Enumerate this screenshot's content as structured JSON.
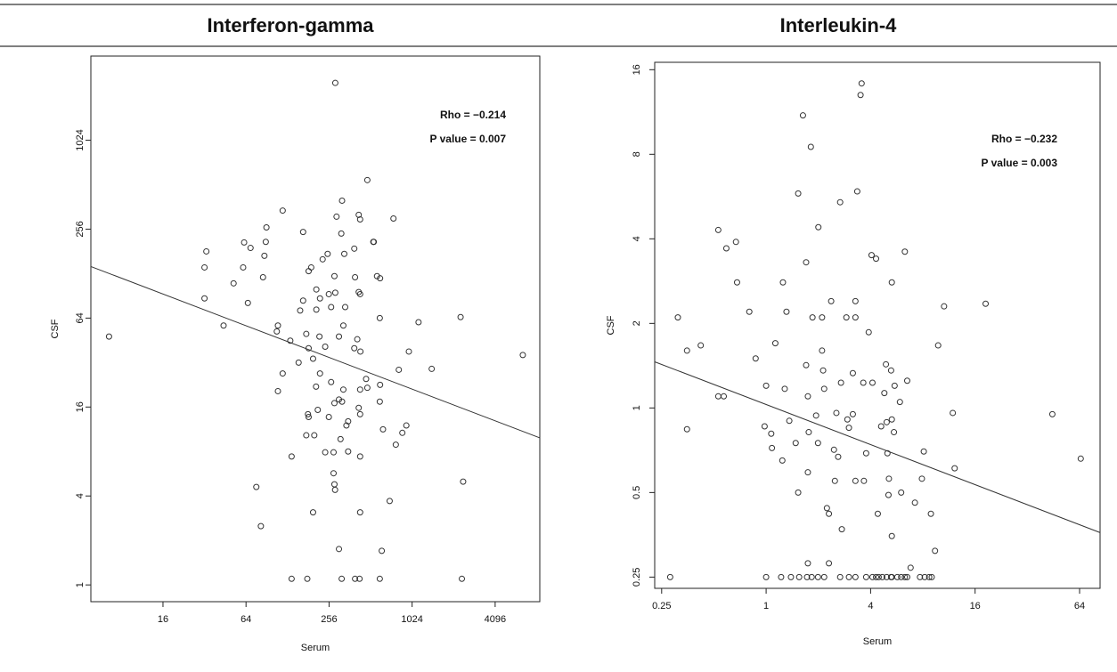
{
  "chart_data": [
    {
      "type": "scatter",
      "title": "Interferon-gamma",
      "x_label": "Serum",
      "y_label": "CSF",
      "xscale": "log",
      "yscale": "log",
      "xlim": [
        4.8,
        8630
      ],
      "ylim": [
        0.77,
        3800
      ],
      "xticks": [
        16,
        64,
        256,
        1024,
        4096
      ],
      "yticks": [
        1,
        4,
        16,
        64,
        256,
        1024
      ],
      "annotations": [
        "Rho =  −0.214",
        "P value =  0.007"
      ],
      "fit_line": {
        "x": [
          4.8,
          8630
        ],
        "values": [
          143,
          9.9
        ]
      },
      "x": [
        6.5,
        284,
        485,
        6500,
        2300,
        2400,
        2350,
        76,
        82,
        137,
        196,
        430,
        704,
        617,
        302,
        137,
        178,
        316,
        395,
        426,
        597,
        33,
        32,
        32,
        44,
        62,
        69,
        90,
        89,
        87,
        61,
        52,
        66,
        85,
        118,
        166,
        290,
        318,
        420,
        430,
        750,
        536,
        314,
        390,
        230,
        190,
        182,
        250,
        330,
        280,
        395,
        570,
        600,
        540,
        420,
        430,
        255,
        207,
        166,
        158,
        207,
        220,
        265,
        284,
        335,
        325,
        597,
        1140,
        109,
        107,
        134,
        175,
        218,
        182,
        240,
        302,
        410,
        390,
        432,
        820,
        970,
        1420,
        154,
        196,
        118,
        220,
        265,
        475,
        430,
        325,
        485,
        600,
        597,
        109,
        206,
        280,
        212,
        180,
        182,
        255,
        302,
        318,
        420,
        430,
        352,
        342,
        630,
        930,
        870,
        780,
        310,
        175,
        200,
        240,
        276,
        352,
        430,
        276,
        280,
        283
      ],
      "values": [
        48,
        2500,
        550,
        36,
        65,
        5,
        1.1,
        4.6,
        2.5,
        7.4,
        3.1,
        3.1,
        3.7,
        1.7,
        1.75,
        1.1,
        1.1,
        1.1,
        1.1,
        1.1,
        1.1,
        181,
        141,
        87,
        57,
        208,
        191,
        263,
        210,
        169,
        141,
        110,
        81,
        121,
        342,
        245,
        311,
        399,
        320,
        298,
        302,
        210,
        239,
        189,
        160,
        141,
        133,
        174,
        174,
        123,
        121,
        123,
        119,
        210,
        96,
        93,
        93,
        100,
        84,
        72,
        73,
        87,
        76,
        95,
        76,
        57,
        64,
        60,
        57,
        52,
        45,
        50,
        48,
        40,
        41,
        48,
        46,
        40,
        38,
        28.6,
        38,
        29,
        32,
        34,
        27,
        27,
        23.6,
        24.8,
        21,
        21,
        21.6,
        22.6,
        17.4,
        20.5,
        22,
        17,
        15.3,
        14.3,
        13.7,
        13.7,
        18,
        17.4,
        15.8,
        14.3,
        12.8,
        12,
        11.3,
        12,
        10.7,
        8.9,
        9.7,
        10.3,
        10.3,
        7.9,
        7.9,
        8,
        7.4,
        5.7,
        4.8,
        4.4
      ]
    },
    {
      "type": "scatter",
      "title": "Interleukin-4",
      "x_label": "Serum",
      "y_label": "CSF",
      "xscale": "log",
      "yscale": "log",
      "xlim": [
        0.228,
        84
      ],
      "ylim": [
        0.228,
        17
      ],
      "xticks": [
        0.25,
        1,
        4,
        16,
        64
      ],
      "yticks": [
        0.25,
        0.5,
        1,
        2,
        4,
        8,
        16
      ],
      "annotations": [
        "Rho =  −0.232",
        "P value =  0.003"
      ],
      "fit_line": {
        "x": [
          0.228,
          84
        ],
        "values": [
          1.46,
          0.36
        ]
      },
      "x": [
        0.28,
        0.31,
        0.35,
        0.42,
        0.35,
        0.53,
        0.53,
        0.57,
        0.67,
        0.59,
        0.68,
        0.8,
        0.87,
        1,
        0.98,
        1.07,
        1.08,
        1,
        1.24,
        1.28,
        1.36,
        1.25,
        1.31,
        1.13,
        1.48,
        1.53,
        1.53,
        1.63,
        1.7,
        1.7,
        1.74,
        1.74,
        1.76,
        1.81,
        1.85,
        1.94,
        1.99,
        2.0,
        2.1,
        2.1,
        2.13,
        2.16,
        2.24,
        2.3,
        2.37,
        2.46,
        2.49,
        2.54,
        2.6,
        2.67,
        2.7,
        2.73,
        2.9,
        2.94,
        3.0,
        3.16,
        3.16,
        3.27,
        3.27,
        3.35,
        3.27,
        3.5,
        3.55,
        3.63,
        3.66,
        3.77,
        3.9,
        4.05,
        4.1,
        4.3,
        4.4,
        4.6,
        4.8,
        4.9,
        4.95,
        5.0,
        5.07,
        5.1,
        5.25,
        5.3,
        5.3,
        5.3,
        5.5,
        5.45,
        5.9,
        6.0,
        6.3,
        6.5,
        7.2,
        7.9,
        8.1,
        8.9,
        9.4,
        9.8,
        10.6,
        11.9,
        12.2,
        18.4,
        44.6,
        65,
        1.22,
        1.39,
        1.55,
        1.72,
        1.83,
        1.99,
        2.16,
        2.67,
        3.0,
        3.27,
        3.77,
        4.1,
        4.3,
        4.45,
        4.67,
        4.95,
        5.25,
        5.3,
        5.7,
        6.0,
        6.3,
        6.5,
        7.7,
        8.2,
        8.7,
        9.0,
        1.74,
        2.3,
        6.8
      ],
      "values": [
        0.25,
        2.1,
        1.6,
        1.67,
        0.84,
        4.3,
        1.1,
        1.1,
        3.9,
        3.7,
        2.8,
        2.2,
        1.5,
        1.2,
        0.86,
        0.81,
        0.72,
        0.25,
        0.65,
        1.17,
        0.9,
        2.8,
        2.2,
        1.7,
        0.75,
        5.8,
        0.5,
        11,
        3.3,
        1.42,
        1.1,
        0.59,
        0.82,
        8.5,
        2.1,
        0.94,
        0.75,
        4.4,
        2.1,
        1.6,
        1.36,
        1.17,
        0.44,
        0.42,
        2.4,
        0.71,
        0.55,
        0.96,
        0.67,
        5.4,
        1.23,
        0.37,
        2.1,
        0.91,
        0.85,
        1.33,
        0.95,
        2.4,
        2.1,
        5.9,
        0.55,
        13,
        14.3,
        1.23,
        0.55,
        0.69,
        1.86,
        3.5,
        1.23,
        3.4,
        0.42,
        0.86,
        1.13,
        1.43,
        0.89,
        0.69,
        0.49,
        0.56,
        1.36,
        2.8,
        0.35,
        0.91,
        1.2,
        0.82,
        1.05,
        0.5,
        3.6,
        1.25,
        0.46,
        0.56,
        0.7,
        0.42,
        0.31,
        1.67,
        2.3,
        0.96,
        0.61,
        2.35,
        0.95,
        0.66,
        0.25,
        0.25,
        0.25,
        0.25,
        0.25,
        0.25,
        0.25,
        0.25,
        0.25,
        0.25,
        0.25,
        0.25,
        0.25,
        0.25,
        0.25,
        0.25,
        0.25,
        0.25,
        0.25,
        0.25,
        0.25,
        0.25,
        0.25,
        0.25,
        0.25,
        0.25,
        0.28,
        0.28,
        0.27
      ]
    }
  ]
}
